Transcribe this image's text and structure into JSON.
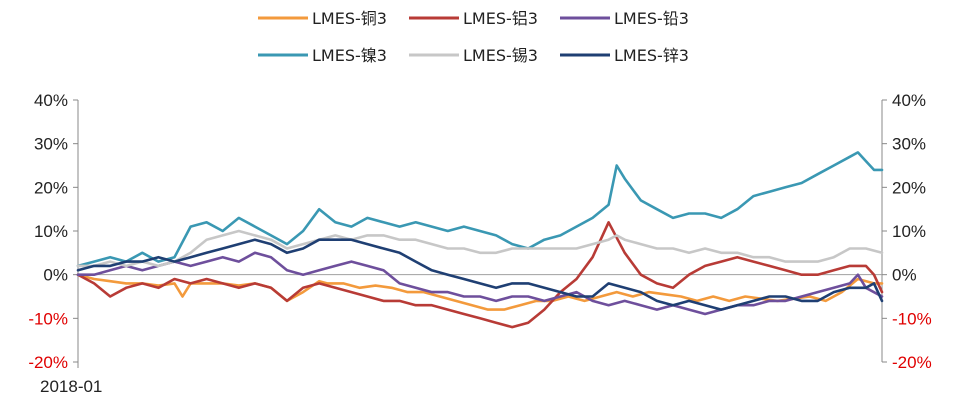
{
  "chart_data": {
    "type": "line",
    "x_start_label": "2018-01",
    "ylim": [
      -20,
      40
    ],
    "y_ticks_left": [
      "40%",
      "30%",
      "20%",
      "10%",
      "0%",
      "-10%",
      "-20%"
    ],
    "y_ticks_right": [
      "40%",
      "30%",
      "20%",
      "10%",
      "0%",
      "-10%",
      "-20%"
    ],
    "y_tick_values": [
      40,
      30,
      20,
      10,
      0,
      -10,
      -20
    ],
    "negative_tick_color": "#e00000",
    "positive_tick_color": "#222222",
    "x_index_range": [
      0,
      100
    ],
    "legend_position": "top-center",
    "series": [
      {
        "name": "LMES-铜3",
        "color": "#f39a3c",
        "points": [
          [
            0,
            0
          ],
          [
            2,
            -1
          ],
          [
            4,
            -1.5
          ],
          [
            6,
            -2
          ],
          [
            8,
            -2
          ],
          [
            10,
            -2.5
          ],
          [
            12,
            -2
          ],
          [
            13,
            -5
          ],
          [
            14,
            -2
          ],
          [
            16,
            -2
          ],
          [
            18,
            -2
          ],
          [
            20,
            -2.5
          ],
          [
            22,
            -2
          ],
          [
            24,
            -3
          ],
          [
            26,
            -6
          ],
          [
            28,
            -4
          ],
          [
            30,
            -1.5
          ],
          [
            31,
            -2
          ],
          [
            33,
            -2
          ],
          [
            35,
            -3
          ],
          [
            37,
            -2.5
          ],
          [
            39,
            -3
          ],
          [
            41,
            -4
          ],
          [
            43,
            -4
          ],
          [
            45,
            -5
          ],
          [
            47,
            -6
          ],
          [
            49,
            -7
          ],
          [
            51,
            -8
          ],
          [
            53,
            -8
          ],
          [
            55,
            -7
          ],
          [
            57,
            -6
          ],
          [
            59,
            -6
          ],
          [
            61,
            -5
          ],
          [
            63,
            -6
          ],
          [
            65,
            -5
          ],
          [
            67,
            -4
          ],
          [
            69,
            -5
          ],
          [
            71,
            -4
          ],
          [
            73,
            -4.5
          ],
          [
            75,
            -5
          ],
          [
            77,
            -6
          ],
          [
            79,
            -5
          ],
          [
            81,
            -6
          ],
          [
            83,
            -5
          ],
          [
            85,
            -5.5
          ],
          [
            87,
            -6
          ],
          [
            89,
            -5.5
          ],
          [
            91,
            -5
          ],
          [
            93,
            -6
          ],
          [
            95,
            -4
          ],
          [
            97,
            -1
          ],
          [
            99,
            -2
          ],
          [
            100,
            -2
          ]
        ]
      },
      {
        "name": "LMES-铝3",
        "color": "#b83b36",
        "points": [
          [
            0,
            0
          ],
          [
            2,
            -2
          ],
          [
            4,
            -5
          ],
          [
            6,
            -3
          ],
          [
            8,
            -2
          ],
          [
            10,
            -3
          ],
          [
            12,
            -1
          ],
          [
            14,
            -2
          ],
          [
            16,
            -1
          ],
          [
            18,
            -2
          ],
          [
            20,
            -3
          ],
          [
            22,
            -2
          ],
          [
            24,
            -3
          ],
          [
            26,
            -6
          ],
          [
            28,
            -3
          ],
          [
            30,
            -2
          ],
          [
            32,
            -3
          ],
          [
            34,
            -4
          ],
          [
            36,
            -5
          ],
          [
            38,
            -6
          ],
          [
            40,
            -6
          ],
          [
            42,
            -7
          ],
          [
            44,
            -7
          ],
          [
            46,
            -8
          ],
          [
            48,
            -9
          ],
          [
            50,
            -10
          ],
          [
            52,
            -11
          ],
          [
            54,
            -12
          ],
          [
            56,
            -11
          ],
          [
            58,
            -8
          ],
          [
            60,
            -4
          ],
          [
            62,
            -1
          ],
          [
            64,
            4
          ],
          [
            66,
            12
          ],
          [
            68,
            5
          ],
          [
            70,
            0
          ],
          [
            72,
            -2
          ],
          [
            74,
            -3
          ],
          [
            76,
            0
          ],
          [
            78,
            2
          ],
          [
            80,
            3
          ],
          [
            82,
            4
          ],
          [
            84,
            3
          ],
          [
            86,
            2
          ],
          [
            88,
            1
          ],
          [
            90,
            0
          ],
          [
            92,
            0
          ],
          [
            94,
            1
          ],
          [
            96,
            2
          ],
          [
            98,
            2
          ],
          [
            99,
            0
          ],
          [
            100,
            -4
          ]
        ]
      },
      {
        "name": "LMES-铅3",
        "color": "#6e4f9c",
        "points": [
          [
            0,
            0
          ],
          [
            2,
            0
          ],
          [
            4,
            1
          ],
          [
            6,
            2
          ],
          [
            8,
            1
          ],
          [
            10,
            2
          ],
          [
            12,
            3
          ],
          [
            14,
            2
          ],
          [
            16,
            3
          ],
          [
            18,
            4
          ],
          [
            20,
            3
          ],
          [
            22,
            5
          ],
          [
            24,
            4
          ],
          [
            26,
            1
          ],
          [
            28,
            0
          ],
          [
            30,
            1
          ],
          [
            32,
            2
          ],
          [
            34,
            3
          ],
          [
            36,
            2
          ],
          [
            38,
            1
          ],
          [
            40,
            -2
          ],
          [
            42,
            -3
          ],
          [
            44,
            -4
          ],
          [
            46,
            -4
          ],
          [
            48,
            -5
          ],
          [
            50,
            -5
          ],
          [
            52,
            -6
          ],
          [
            54,
            -5
          ],
          [
            56,
            -5
          ],
          [
            58,
            -6
          ],
          [
            60,
            -5
          ],
          [
            62,
            -4
          ],
          [
            64,
            -6
          ],
          [
            66,
            -7
          ],
          [
            68,
            -6
          ],
          [
            70,
            -7
          ],
          [
            72,
            -8
          ],
          [
            74,
            -7
          ],
          [
            76,
            -8
          ],
          [
            78,
            -9
          ],
          [
            80,
            -8
          ],
          [
            82,
            -7
          ],
          [
            84,
            -7
          ],
          [
            86,
            -6
          ],
          [
            88,
            -6
          ],
          [
            90,
            -5
          ],
          [
            92,
            -4
          ],
          [
            94,
            -3
          ],
          [
            96,
            -2
          ],
          [
            97,
            0
          ],
          [
            98,
            -3
          ],
          [
            100,
            -5
          ]
        ]
      },
      {
        "name": "LMES-镍3",
        "color": "#3a98b3",
        "points": [
          [
            0,
            2
          ],
          [
            2,
            3
          ],
          [
            4,
            4
          ],
          [
            6,
            3
          ],
          [
            8,
            5
          ],
          [
            10,
            3
          ],
          [
            12,
            4
          ],
          [
            14,
            11
          ],
          [
            16,
            12
          ],
          [
            18,
            10
          ],
          [
            20,
            13
          ],
          [
            22,
            11
          ],
          [
            24,
            9
          ],
          [
            26,
            7
          ],
          [
            28,
            10
          ],
          [
            30,
            15
          ],
          [
            32,
            12
          ],
          [
            34,
            11
          ],
          [
            36,
            13
          ],
          [
            38,
            12
          ],
          [
            40,
            11
          ],
          [
            42,
            12
          ],
          [
            44,
            11
          ],
          [
            46,
            10
          ],
          [
            48,
            11
          ],
          [
            50,
            10
          ],
          [
            52,
            9
          ],
          [
            54,
            7
          ],
          [
            56,
            6
          ],
          [
            58,
            8
          ],
          [
            60,
            9
          ],
          [
            62,
            11
          ],
          [
            64,
            13
          ],
          [
            66,
            16
          ],
          [
            67,
            25
          ],
          [
            68,
            22
          ],
          [
            70,
            17
          ],
          [
            72,
            15
          ],
          [
            74,
            13
          ],
          [
            76,
            14
          ],
          [
            78,
            14
          ],
          [
            80,
            13
          ],
          [
            82,
            15
          ],
          [
            84,
            18
          ],
          [
            86,
            19
          ],
          [
            88,
            20
          ],
          [
            90,
            21
          ],
          [
            92,
            23
          ],
          [
            94,
            25
          ],
          [
            96,
            27
          ],
          [
            97,
            28
          ],
          [
            98,
            26
          ],
          [
            99,
            24
          ],
          [
            100,
            24
          ]
        ]
      },
      {
        "name": "LMES-锡3",
        "color": "#c7c7c7",
        "points": [
          [
            0,
            2
          ],
          [
            2,
            2
          ],
          [
            4,
            3
          ],
          [
            6,
            2
          ],
          [
            8,
            3
          ],
          [
            10,
            2
          ],
          [
            12,
            3
          ],
          [
            14,
            5
          ],
          [
            16,
            8
          ],
          [
            18,
            9
          ],
          [
            20,
            10
          ],
          [
            22,
            9
          ],
          [
            24,
            8
          ],
          [
            26,
            6
          ],
          [
            28,
            7
          ],
          [
            30,
            8
          ],
          [
            32,
            9
          ],
          [
            34,
            8
          ],
          [
            36,
            9
          ],
          [
            38,
            9
          ],
          [
            40,
            8
          ],
          [
            42,
            8
          ],
          [
            44,
            7
          ],
          [
            46,
            6
          ],
          [
            48,
            6
          ],
          [
            50,
            5
          ],
          [
            52,
            5
          ],
          [
            54,
            6
          ],
          [
            56,
            6
          ],
          [
            58,
            6
          ],
          [
            60,
            6
          ],
          [
            62,
            6
          ],
          [
            64,
            7
          ],
          [
            66,
            8
          ],
          [
            67,
            9
          ],
          [
            68,
            8
          ],
          [
            70,
            7
          ],
          [
            72,
            6
          ],
          [
            74,
            6
          ],
          [
            76,
            5
          ],
          [
            78,
            6
          ],
          [
            80,
            5
          ],
          [
            82,
            5
          ],
          [
            84,
            4
          ],
          [
            86,
            4
          ],
          [
            88,
            3
          ],
          [
            90,
            3
          ],
          [
            92,
            3
          ],
          [
            94,
            4
          ],
          [
            96,
            6
          ],
          [
            98,
            6
          ],
          [
            100,
            5
          ]
        ]
      },
      {
        "name": "LMES-锌3",
        "color": "#1f3f73",
        "points": [
          [
            0,
            1
          ],
          [
            2,
            2
          ],
          [
            4,
            2
          ],
          [
            6,
            3
          ],
          [
            8,
            3
          ],
          [
            10,
            4
          ],
          [
            12,
            3
          ],
          [
            14,
            4
          ],
          [
            16,
            5
          ],
          [
            18,
            6
          ],
          [
            20,
            7
          ],
          [
            22,
            8
          ],
          [
            24,
            7
          ],
          [
            26,
            5
          ],
          [
            28,
            6
          ],
          [
            30,
            8
          ],
          [
            32,
            8
          ],
          [
            34,
            8
          ],
          [
            36,
            7
          ],
          [
            38,
            6
          ],
          [
            40,
            5
          ],
          [
            42,
            3
          ],
          [
            44,
            1
          ],
          [
            46,
            0
          ],
          [
            48,
            -1
          ],
          [
            50,
            -2
          ],
          [
            52,
            -3
          ],
          [
            54,
            -2
          ],
          [
            56,
            -2
          ],
          [
            58,
            -3
          ],
          [
            60,
            -4
          ],
          [
            62,
            -5
          ],
          [
            64,
            -5
          ],
          [
            66,
            -2
          ],
          [
            68,
            -3
          ],
          [
            70,
            -4
          ],
          [
            72,
            -6
          ],
          [
            74,
            -7
          ],
          [
            76,
            -6
          ],
          [
            78,
            -7
          ],
          [
            80,
            -8
          ],
          [
            82,
            -7
          ],
          [
            84,
            -6
          ],
          [
            86,
            -5
          ],
          [
            88,
            -5
          ],
          [
            90,
            -6
          ],
          [
            92,
            -6
          ],
          [
            94,
            -4
          ],
          [
            96,
            -3
          ],
          [
            98,
            -3
          ],
          [
            99,
            -2
          ],
          [
            100,
            -6
          ]
        ]
      }
    ]
  }
}
